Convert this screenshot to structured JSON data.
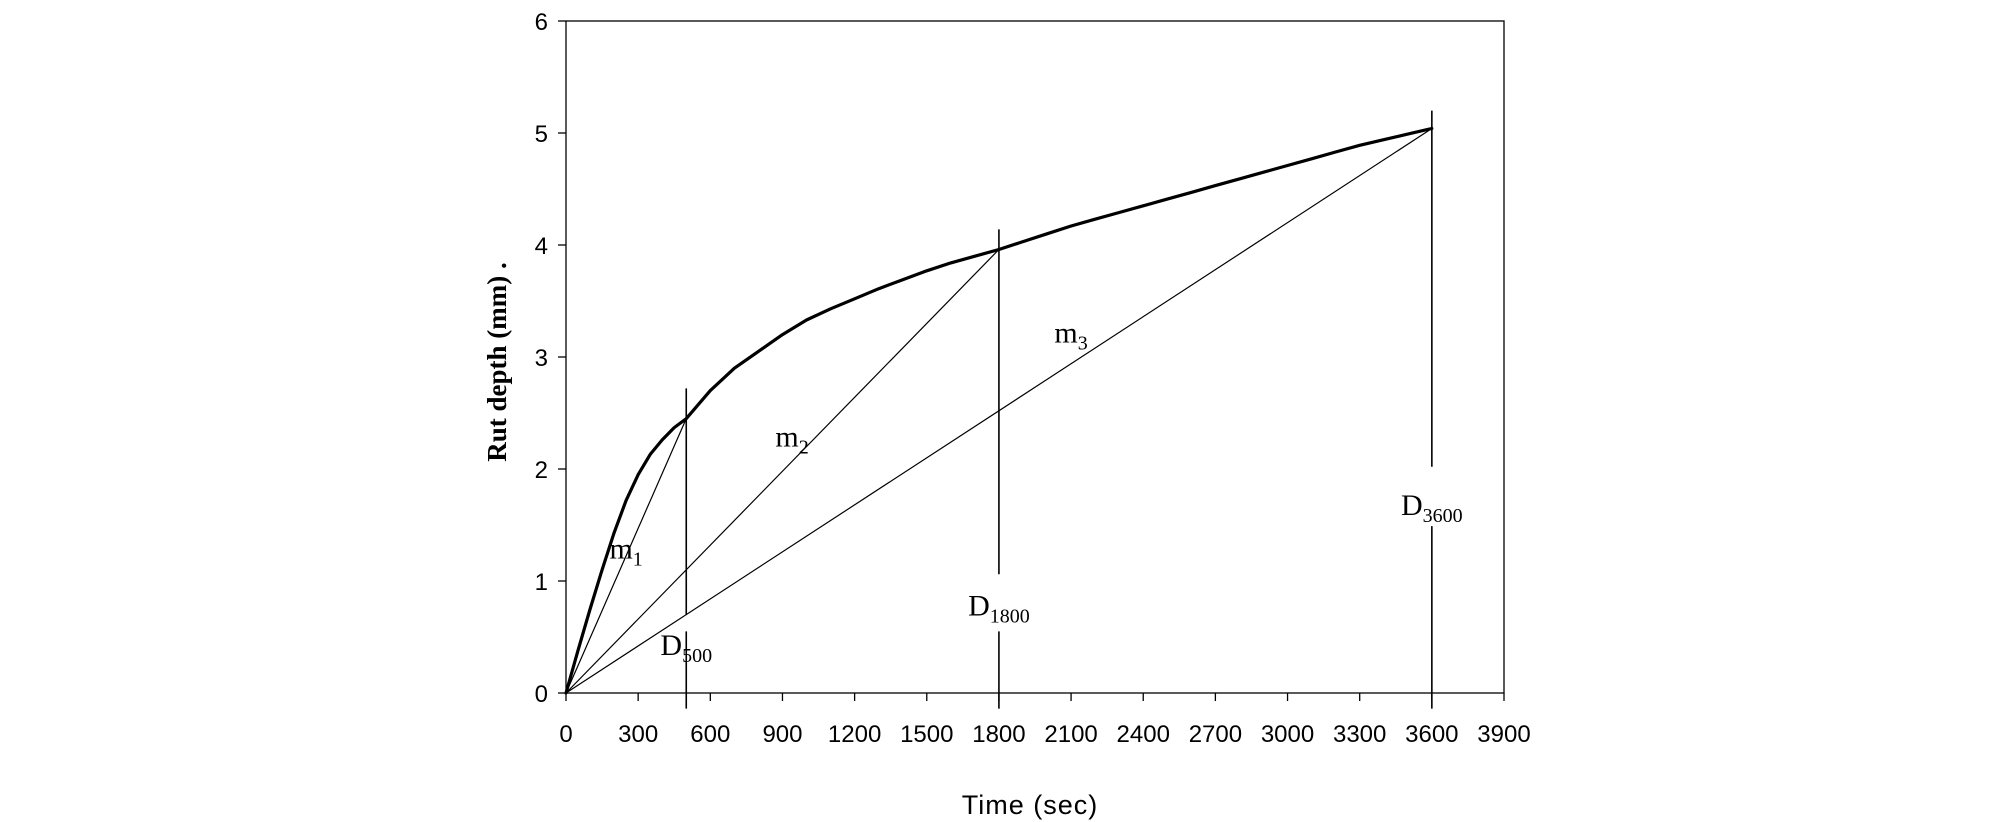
{
  "chart_data": {
    "type": "line",
    "title": "",
    "xlabel": "Time (sec)",
    "ylabel": "Rut depth (mm) .",
    "xlim": [
      0,
      3900
    ],
    "ylim": [
      0,
      6
    ],
    "x_ticks": [
      0,
      300,
      600,
      900,
      1200,
      1500,
      1800,
      2100,
      2400,
      2700,
      3000,
      3300,
      3600,
      3900
    ],
    "y_ticks": [
      0,
      1,
      2,
      3,
      4,
      5,
      6
    ],
    "grid": false,
    "legend": "none",
    "series": [
      {
        "x": [
          0,
          50,
          100,
          150,
          200,
          250,
          300,
          350,
          400,
          450,
          500,
          600,
          700,
          800,
          900,
          1000,
          1100,
          1200,
          1300,
          1400,
          1500,
          1600,
          1700,
          1800,
          1900,
          2000,
          2100,
          2200,
          2300,
          2400,
          2500,
          2600,
          2700,
          2800,
          2900,
          3000,
          3100,
          3200,
          3300,
          3400,
          3500,
          3600
        ],
        "y": [
          0,
          0.38,
          0.75,
          1.1,
          1.43,
          1.72,
          1.95,
          2.13,
          2.26,
          2.37,
          2.45,
          2.7,
          2.9,
          3.05,
          3.2,
          3.33,
          3.43,
          3.52,
          3.61,
          3.69,
          3.77,
          3.84,
          3.9,
          3.96,
          4.03,
          4.1,
          4.17,
          4.23,
          4.29,
          4.35,
          4.41,
          4.47,
          4.53,
          4.59,
          4.65,
          4.71,
          4.77,
          4.83,
          4.89,
          4.94,
          4.99,
          5.04
        ]
      }
    ],
    "secant_lines": [
      {
        "label": "m",
        "label_sub": "1",
        "x1": 0,
        "y1": 0,
        "x2": 500,
        "y2": 2.45,
        "label_x": 250,
        "label_y": 1.2
      },
      {
        "label": "m",
        "label_sub": "2",
        "x1": 0,
        "y1": 0,
        "x2": 1800,
        "y2": 3.96,
        "label_x": 940,
        "label_y": 2.2
      },
      {
        "label": "m",
        "label_sub": "3",
        "x1": 0,
        "y1": 0,
        "x2": 3600,
        "y2": 5.04,
        "label_x": 2100,
        "label_y": 3.13
      }
    ],
    "markers": [
      {
        "label": "D",
        "label_sub": "500",
        "x": 500,
        "y_top": 2.72,
        "y_bottom": -0.14,
        "gap_from": 0.7,
        "gap_to": 0.55,
        "label_y": 0.34
      },
      {
        "label": "D",
        "label_sub": "1800",
        "x": 1800,
        "y_top": 4.14,
        "y_bottom": -0.14,
        "gap_from": 1.06,
        "gap_to": 0.55,
        "label_y": 0.69
      },
      {
        "label": "D",
        "label_sub": "3600",
        "x": 3600,
        "y_top": 5.2,
        "y_bottom": -0.14,
        "gap_from": 2.02,
        "gap_to": 1.49,
        "label_y": 1.59
      }
    ]
  }
}
